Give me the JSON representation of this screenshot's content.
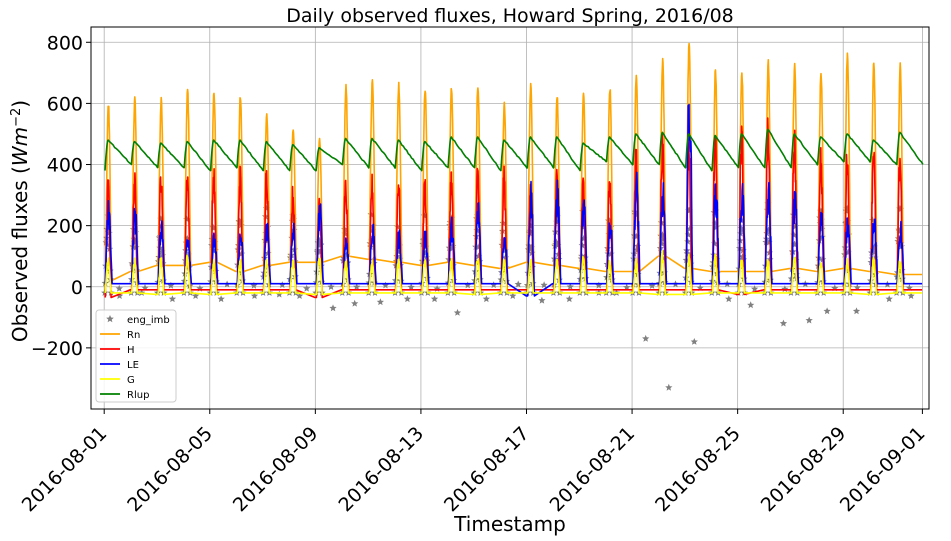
{
  "chart_data": {
    "type": "line",
    "title": "Daily observed fluxes, Howard Spring, 2016/08",
    "xlabel": "Timestamp",
    "ylabel_text": "Observed fluxes (",
    "ylabel_unit_base": "Wm",
    "ylabel_unit_exp": "−2",
    "ylabel_close": ")",
    "xlim": [
      "2016-07-31T12:00",
      "2016-09-01T06:00"
    ],
    "ylim": [
      -400,
      850
    ],
    "grid": true,
    "legend_position": "lower-left",
    "x_ticks": [
      "2016-08-01",
      "2016-08-05",
      "2016-08-09",
      "2016-08-13",
      "2016-08-17",
      "2016-08-21",
      "2016-08-25",
      "2016-08-29",
      "2016-09-01"
    ],
    "y_ticks": [
      800,
      600,
      400,
      200,
      0,
      -200
    ],
    "y_tick_labels": [
      "800",
      "600",
      "400",
      "200",
      "0",
      "−200"
    ],
    "days": [
      "2016-08-01",
      "2016-08-02",
      "2016-08-03",
      "2016-08-04",
      "2016-08-05",
      "2016-08-06",
      "2016-08-07",
      "2016-08-08",
      "2016-08-09",
      "2016-08-10",
      "2016-08-11",
      "2016-08-12",
      "2016-08-13",
      "2016-08-14",
      "2016-08-15",
      "2016-08-16",
      "2016-08-17",
      "2016-08-18",
      "2016-08-19",
      "2016-08-20",
      "2016-08-21",
      "2016-08-22",
      "2016-08-23",
      "2016-08-24",
      "2016-08-25",
      "2016-08-26",
      "2016-08-27",
      "2016-08-28",
      "2016-08-29",
      "2016-08-30",
      "2016-08-31"
    ],
    "series": [
      {
        "name": "eng_imb",
        "color": "#808080",
        "marker": "star",
        "daily_peak": [
          250,
          240,
          240,
          230,
          255,
          260,
          280,
          290,
          240,
          260,
          260,
          245,
          250,
          260,
          250,
          260,
          240,
          260,
          270,
          265,
          270,
          280,
          300,
          280,
          270,
          280,
          280,
          290,
          300,
          260,
          290
        ],
        "daily_min": [
          -30,
          -20,
          -40,
          -30,
          -40,
          -30,
          -25,
          -30,
          -70,
          -55,
          -50,
          -40,
          -40,
          -85,
          -40,
          -30,
          -45,
          -40,
          -20,
          -20,
          -170,
          -330,
          -180,
          -40,
          -60,
          -120,
          -110,
          -80,
          -80,
          -40,
          -30
        ]
      },
      {
        "name": "Rn",
        "color": "#ffa500",
        "marker": "line",
        "daily_peak": [
          595,
          610,
          610,
          635,
          630,
          625,
          560,
          520,
          480,
          655,
          675,
          660,
          650,
          655,
          660,
          595,
          655,
          620,
          635,
          645,
          690,
          735,
          795,
          710,
          700,
          735,
          720,
          700,
          765,
          735,
          720
        ],
        "daily_min": [
          20,
          50,
          70,
          70,
          80,
          50,
          70,
          80,
          80,
          100,
          90,
          80,
          70,
          80,
          70,
          60,
          80,
          70,
          60,
          50,
          50,
          100,
          60,
          50,
          50,
          50,
          60,
          50,
          60,
          50,
          40
        ]
      },
      {
        "name": "H",
        "color": "#ff0000",
        "marker": "line",
        "daily_peak": [
          320,
          340,
          355,
          360,
          355,
          360,
          375,
          300,
          290,
          320,
          330,
          340,
          330,
          350,
          370,
          350,
          340,
          340,
          330,
          340,
          410,
          450,
          460,
          480,
          500,
          500,
          470,
          420,
          420,
          450,
          420
        ],
        "daily_min": [
          -35,
          -10,
          -10,
          -10,
          -10,
          -10,
          -10,
          -10,
          -35,
          -10,
          -10,
          -10,
          -10,
          -10,
          -10,
          -10,
          -10,
          -10,
          -10,
          -10,
          -10,
          -10,
          -10,
          -10,
          -25,
          -10,
          -10,
          -10,
          -10,
          -10,
          -10
        ]
      },
      {
        "name": "LE",
        "color": "#0000ff",
        "marker": "line",
        "daily_peak": [
          240,
          230,
          200,
          160,
          150,
          160,
          190,
          180,
          240,
          150,
          180,
          160,
          160,
          190,
          240,
          160,
          290,
          300,
          250,
          200,
          320,
          290,
          570,
          300,
          300,
          290,
          280,
          220,
          200,
          220,
          180
        ],
        "daily_min": [
          10,
          10,
          10,
          10,
          10,
          10,
          10,
          10,
          10,
          10,
          10,
          10,
          10,
          10,
          10,
          10,
          -30,
          10,
          10,
          10,
          10,
          10,
          10,
          10,
          10,
          10,
          10,
          10,
          10,
          10,
          10
        ]
      },
      {
        "name": "G",
        "color": "#ffff00",
        "marker": "line",
        "daily_peak": [
          80,
          80,
          85,
          90,
          75,
          80,
          80,
          80,
          90,
          80,
          85,
          80,
          80,
          80,
          90,
          80,
          80,
          80,
          90,
          80,
          80,
          100,
          90,
          90,
          80,
          80,
          90,
          80,
          80,
          90,
          80
        ],
        "daily_min": [
          -20,
          -20,
          -25,
          -20,
          -25,
          -20,
          -20,
          -20,
          -25,
          -20,
          -20,
          -20,
          -20,
          -20,
          -25,
          -20,
          -20,
          -20,
          -20,
          -20,
          -20,
          -25,
          -25,
          -20,
          -20,
          -20,
          -20,
          -20,
          -20,
          -25,
          -20
        ]
      },
      {
        "name": "Rlup",
        "color": "#008000",
        "marker": "line",
        "daily_peak": [
          480,
          475,
          470,
          475,
          480,
          480,
          475,
          465,
          455,
          485,
          485,
          480,
          475,
          490,
          490,
          480,
          490,
          490,
          470,
          490,
          500,
          505,
          500,
          495,
          500,
          515,
          500,
          490,
          500,
          480,
          505
        ],
        "daily_min": [
          380,
          400,
          390,
          390,
          380,
          390,
          380,
          380,
          380,
          400,
          390,
          390,
          380,
          390,
          390,
          380,
          390,
          390,
          380,
          410,
          400,
          400,
          390,
          380,
          390,
          390,
          390,
          400,
          410,
          410,
          400
        ]
      }
    ]
  }
}
